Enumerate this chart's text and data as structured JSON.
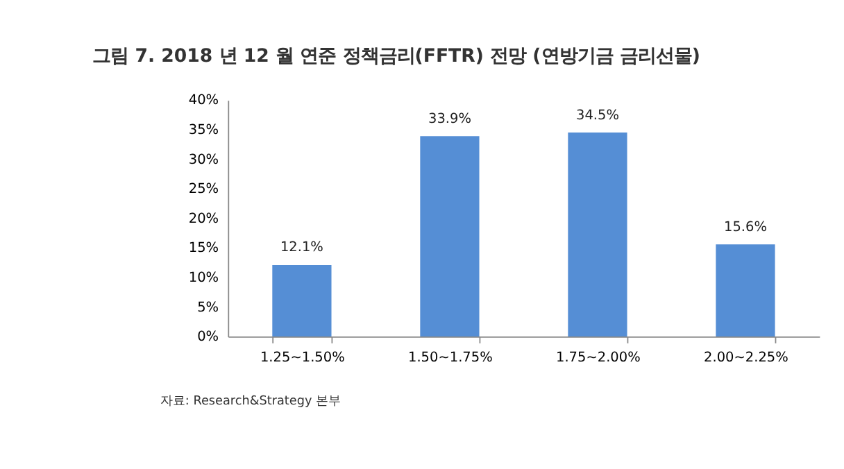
{
  "chart_data": {
    "type": "bar",
    "title": "그림 7.  2018 년 12 월 연준 정책금리(FFTR) 전망 (연방기금 금리선물)",
    "categories": [
      "1.25~1.50%",
      "1.50~1.75%",
      "1.75~2.00%",
      "2.00~2.25%"
    ],
    "values": [
      12.1,
      33.9,
      34.5,
      15.6
    ],
    "value_labels": [
      "12.1%",
      "33.9%",
      "34.5%",
      "15.6%"
    ],
    "color": "#558ed5",
    "ylim": [
      0,
      40
    ],
    "yticks": [
      {
        "value": 0,
        "label": "0%"
      },
      {
        "value": 5,
        "label": "5%"
      },
      {
        "value": 10,
        "label": "10%"
      },
      {
        "value": 15,
        "label": "15%"
      },
      {
        "value": 20,
        "label": "20%"
      },
      {
        "value": 25,
        "label": "25%"
      },
      {
        "value": 30,
        "label": "30%"
      },
      {
        "value": 35,
        "label": "35%"
      },
      {
        "value": 40,
        "label": "40%"
      }
    ],
    "grid": false,
    "annotations": [
      "자료: Research&Strategy 본부"
    ]
  }
}
